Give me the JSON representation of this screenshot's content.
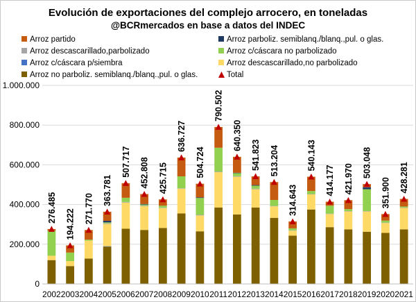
{
  "chart_data": {
    "type": "bar",
    "stacked": true,
    "title": "Evolución de exportaciones del complejo arrocero, en toneladas",
    "subtitle": "@BCRmercados en base a datos del INDEC",
    "categories": [
      "2002",
      "2003",
      "2004",
      "2005",
      "2006",
      "2007",
      "2008",
      "2009",
      "2010",
      "2011",
      "2012",
      "2013",
      "2014",
      "2015",
      "2016",
      "2017",
      "2018",
      "2019",
      "2020",
      "2021"
    ],
    "ylim": [
      0,
      1000000
    ],
    "yticks": [
      0,
      200000,
      400000,
      600000,
      800000,
      1000000
    ],
    "ytick_labels": [
      "0",
      "200.000",
      "400.000",
      "600.000",
      "800.000",
      "1.000.000"
    ],
    "legend_position": "top",
    "series": [
      {
        "name": "Arroz no parboliz. semiblanq./blanq.,pul. o glas.",
        "color": "#7f6000",
        "values": [
          120000,
          90000,
          128000,
          188000,
          278000,
          272000,
          282000,
          355000,
          265000,
          385000,
          350000,
          385000,
          333000,
          243000,
          375000,
          286000,
          275000,
          263000,
          257000,
          275000
        ]
      },
      {
        "name": "Arroz c/cáscara p/siembra",
        "color": "#4472c4",
        "values": [
          0,
          0,
          0,
          2000,
          0,
          0,
          0,
          0,
          0,
          0,
          0,
          0,
          0,
          0,
          0,
          0,
          0,
          0,
          0,
          0
        ]
      },
      {
        "name": "Arroz descascarillado,no parbolizado",
        "color": "#ffd966",
        "values": [
          22000,
          25000,
          90000,
          112000,
          132000,
          120000,
          100000,
          125000,
          80000,
          178000,
          190000,
          92000,
          58000,
          25000,
          76000,
          66000,
          90000,
          102000,
          50000,
          108000
        ]
      },
      {
        "name": "Arroz descascarillado,parbolizado",
        "color": "#a5a5a5",
        "values": [
          0,
          0,
          0,
          3000,
          3000,
          3000,
          2000,
          2000,
          3000,
          3000,
          3000,
          3000,
          2000,
          2000,
          2000,
          2000,
          2000,
          2000,
          2000,
          2000
        ]
      },
      {
        "name": "Arroz c/cáscara no parbolizado",
        "color": "#92d050",
        "values": [
          126000,
          43000,
          5000,
          5000,
          21000,
          5000,
          10000,
          60000,
          85000,
          120000,
          15000,
          15000,
          30000,
          10000,
          15000,
          40000,
          10000,
          110000,
          10000,
          5000
        ]
      },
      {
        "name": "Arroz parboliz. semiblanq./blanq.,pul. o glas.",
        "color": "#1f3864",
        "values": [
          0,
          0,
          0,
          8000,
          0,
          3000,
          0,
          0,
          3000,
          0,
          2000,
          3000,
          0,
          0,
          0,
          0,
          0,
          10000,
          0,
          0
        ]
      },
      {
        "name": "Arroz partido",
        "color": "#c55a11",
        "values": [
          8485,
          36222,
          48770,
          45781,
          73717,
          49808,
          31715,
          94727,
          68724,
          104502,
          80350,
          43823,
          90204,
          34643,
          72143,
          20177,
          44970,
          16048,
          32900,
          38281
        ]
      }
    ],
    "totals": {
      "name": "Total",
      "color": "#c00000",
      "values": [
        276485,
        194222,
        271770,
        363781,
        507717,
        452808,
        425715,
        636727,
        504724,
        790502,
        640350,
        541823,
        513204,
        314643,
        540143,
        414177,
        421970,
        503048,
        351900,
        428281
      ],
      "labels": [
        "276.485",
        "194.222",
        "271.770",
        "363.781",
        "507.717",
        "452.808",
        "425.715",
        "636.727",
        "504.724",
        "790.502",
        "640.350",
        "541.823",
        "513.204",
        "314.643",
        "540.143",
        "414.177",
        "421.970",
        "503.048",
        "351.900",
        "428.281"
      ]
    },
    "legend_order": [
      "Arroz partido",
      "Arroz parboliz. semiblanq./blanq.,pul. o glas.",
      "Arroz descascarillado,parbolizado",
      "Arroz c/cáscara no parbolizado",
      "Arroz c/cáscara p/siembra",
      "Arroz descascarillado,no parbolizado",
      "Arroz no parboliz. semiblanq./blanq.,pul. o glas.",
      "Total"
    ],
    "gridlines": true
  }
}
